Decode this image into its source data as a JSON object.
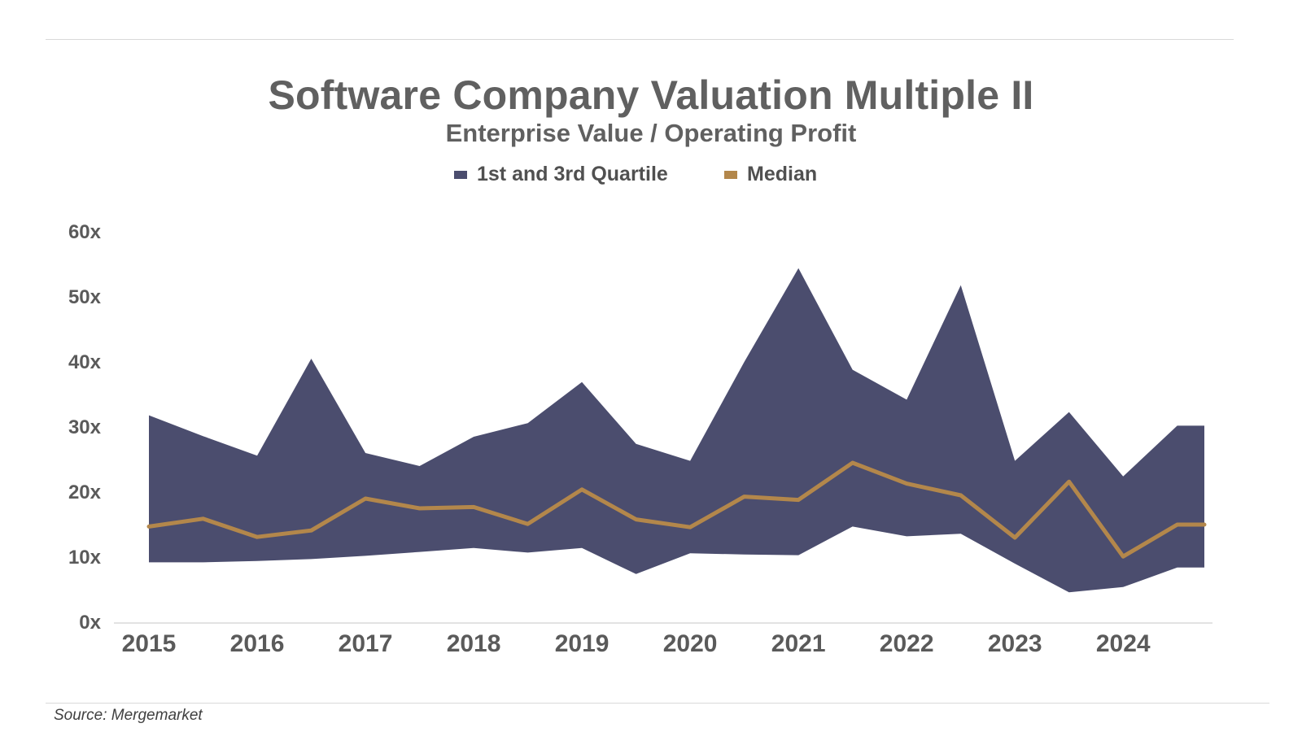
{
  "chart_data": {
    "type": "area",
    "title": "Software Company Valuation Multiple II",
    "subtitle": "Enterprise Value / Operating Profit",
    "xlabel": "",
    "ylabel": "",
    "x_tick_labels": [
      "2015",
      "2016",
      "2017",
      "2018",
      "2019",
      "2020",
      "2021",
      "2022",
      "2023",
      "2024"
    ],
    "y_tick_labels": [
      "0x",
      "10x",
      "20x",
      "30x",
      "40x",
      "50x",
      "60x"
    ],
    "y_ticks": [
      0,
      10,
      20,
      30,
      40,
      50,
      60
    ],
    "ylim": [
      0,
      60
    ],
    "xlim": [
      2015.0,
      2024.75
    ],
    "grid": false,
    "legend_position": "top-center",
    "x": [
      2015.0,
      2015.5,
      2016.0,
      2016.5,
      2017.0,
      2017.5,
      2018.0,
      2018.5,
      2019.0,
      2019.5,
      2020.0,
      2020.5,
      2021.0,
      2021.5,
      2022.0,
      2022.5,
      2023.0,
      2023.5,
      2024.0,
      2024.5,
      2024.75
    ],
    "series": [
      {
        "name": "1st and 3rd Quartile",
        "kind": "band",
        "color": "#4b4d6e",
        "x": [
          2015.0,
          2015.5,
          2016.0,
          2016.5,
          2017.0,
          2017.5,
          2018.0,
          2018.5,
          2019.0,
          2019.5,
          2020.0,
          2020.5,
          2021.0,
          2021.5,
          2022.0,
          2022.5,
          2023.0,
          2023.5,
          2024.0,
          2024.5,
          2024.75
        ],
        "upper": [
          31.8,
          28.6,
          25.6,
          40.5,
          26.0,
          24.0,
          28.5,
          30.6,
          36.9,
          27.4,
          24.8,
          40.0,
          54.4,
          38.8,
          34.2,
          51.8,
          24.8,
          32.3,
          22.4,
          30.2,
          30.2
        ],
        "lower": [
          9.2,
          9.2,
          9.4,
          9.7,
          10.2,
          10.8,
          11.4,
          10.7,
          11.4,
          7.4,
          10.6,
          10.4,
          10.3,
          14.7,
          13.2,
          13.6,
          9.0,
          4.6,
          5.4,
          8.4,
          8.4
        ]
      },
      {
        "name": "Median",
        "kind": "line",
        "color": "#b3874b",
        "x": [
          2015.0,
          2015.5,
          2016.0,
          2016.5,
          2017.0,
          2017.5,
          2018.0,
          2018.5,
          2019.0,
          2019.5,
          2020.0,
          2020.5,
          2021.0,
          2021.5,
          2022.0,
          2022.5,
          2023.0,
          2023.5,
          2024.0,
          2024.5,
          2024.75
        ],
        "values": [
          14.7,
          15.9,
          13.1,
          14.1,
          19.0,
          17.5,
          17.7,
          15.1,
          20.4,
          15.8,
          14.6,
          19.3,
          18.8,
          24.5,
          21.3,
          19.5,
          13.0,
          21.6,
          10.1,
          15.0,
          15.0
        ]
      }
    ]
  },
  "legend": {
    "band_label": "1st and 3rd Quartile",
    "line_label": "Median"
  },
  "footer": {
    "source": "Source: Mergemarket"
  }
}
